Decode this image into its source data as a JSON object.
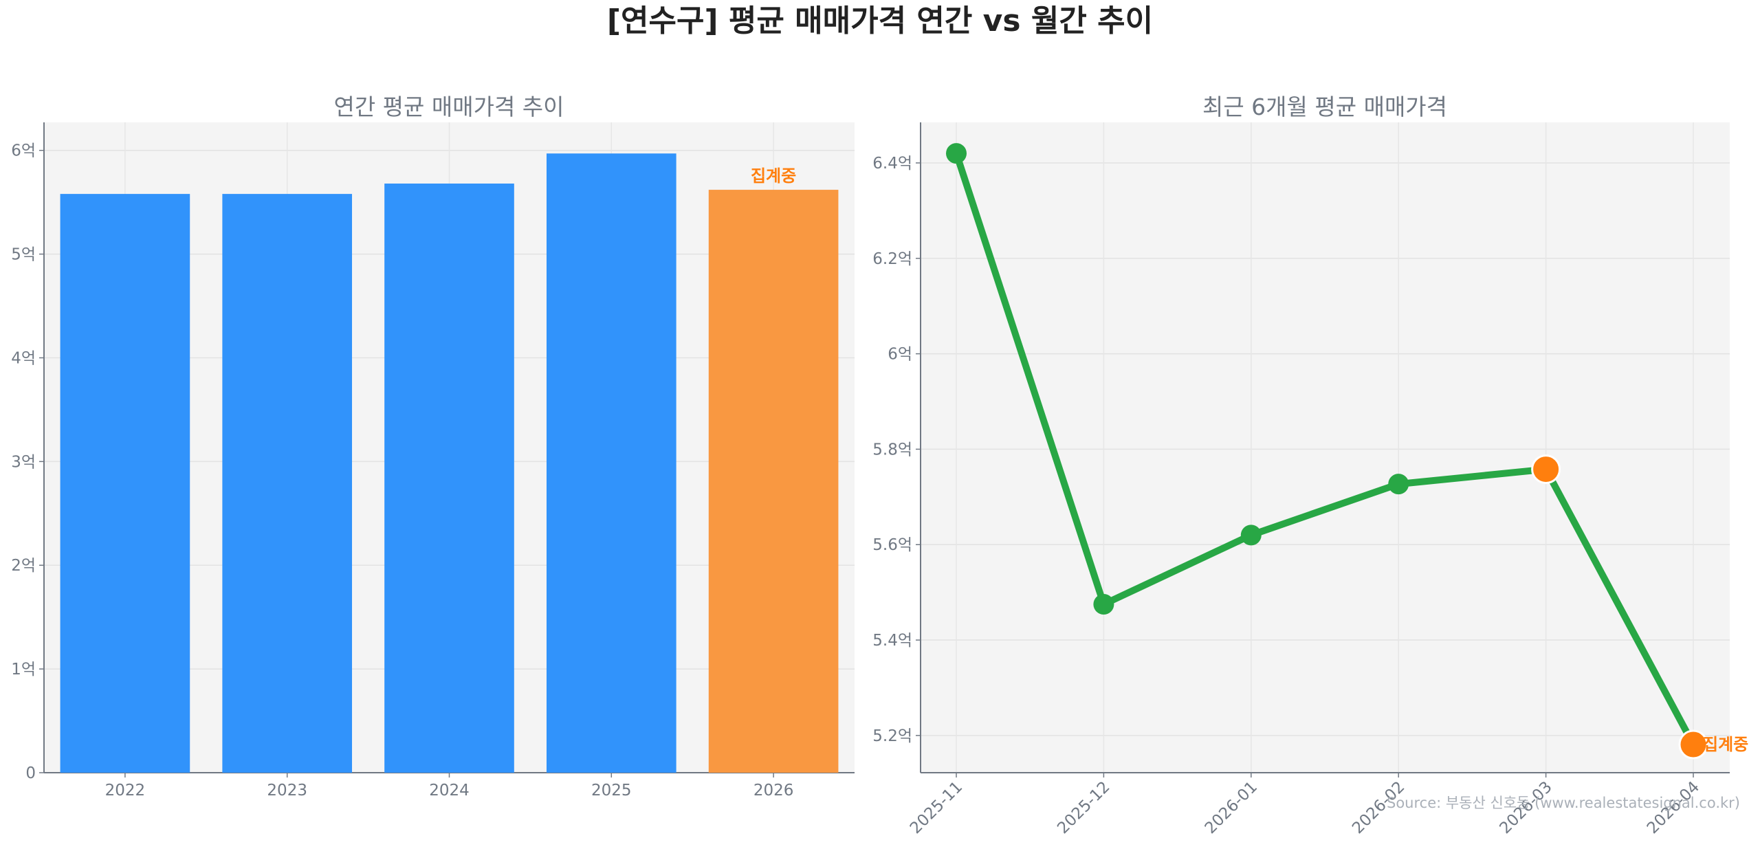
{
  "title": "[연수구] 평균 매매가격 연간 vs 월간 추이",
  "source": "Source: 부동산 신호등 (www.realestatesignal.co.kr)",
  "colors": {
    "bar": "#3193fb",
    "bar_pending": "#f99841",
    "line": "#28a745",
    "pending_marker": "#ff7f0e",
    "panel_bg": "#f4f4f4"
  },
  "chart_data": [
    {
      "type": "bar",
      "title": "연간 평균 매매가격 추이",
      "categories": [
        "2022",
        "2023",
        "2024",
        "2025",
        "2026"
      ],
      "values": [
        5.58,
        5.58,
        5.68,
        5.97,
        5.62
      ],
      "pending": [
        false,
        false,
        false,
        false,
        true
      ],
      "pending_label": "집계중",
      "unit": "억",
      "ylim": [
        0,
        6.27
      ],
      "yticks": [
        0,
        1,
        2,
        3,
        4,
        5,
        6
      ],
      "ytick_labels": [
        "0",
        "1억",
        "2억",
        "3억",
        "4억",
        "5억",
        "6억"
      ],
      "grid": true
    },
    {
      "type": "line",
      "title": "최근 6개월 평균 매매가격",
      "x": [
        "2025-11",
        "2025-12",
        "2026-01",
        "2026-02",
        "2026-03",
        "2026-04"
      ],
      "values": [
        6.42,
        5.475,
        5.62,
        5.727,
        5.758,
        5.181
      ],
      "highlight": [
        false,
        false,
        false,
        false,
        true,
        true
      ],
      "pending_label": "집계중",
      "unit": "억",
      "ylim": [
        5.122,
        6.485
      ],
      "yticks": [
        5.2,
        5.4,
        5.6,
        5.8,
        6.0,
        6.2,
        6.4
      ],
      "ytick_labels": [
        "5.2억",
        "5.4억",
        "5.6억",
        "5.8억",
        "6억",
        "6.2억",
        "6.4억"
      ],
      "grid": true
    }
  ]
}
